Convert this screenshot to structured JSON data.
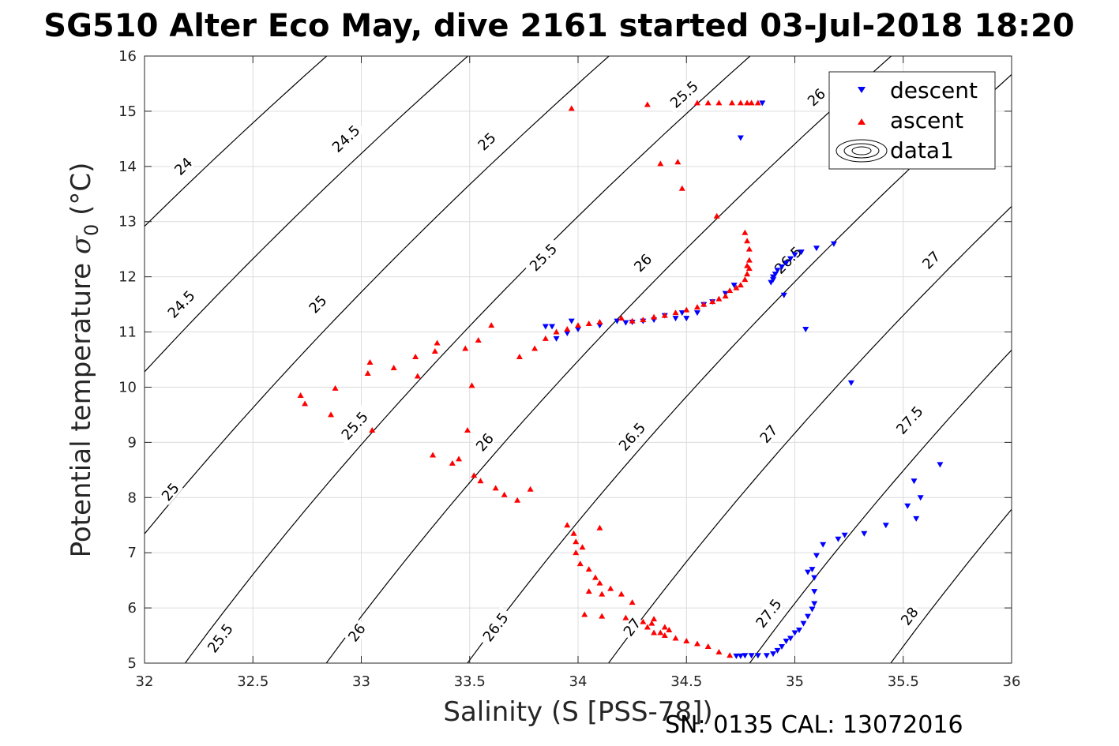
{
  "chart_data": {
    "type": "scatter",
    "title": "SG510 Alter Eco May, dive 2161 started 03-Jul-2018 18:20",
    "xlabel": "Salinity (S [PSS-78])",
    "ylabel_main": "Potential temperature ",
    "ylabel_sigma": "σ",
    "ylabel_sub": "0",
    "ylabel_unit": " (°C)",
    "footer": "SN: 0135  CAL: 13072016",
    "xlim": [
      32,
      36
    ],
    "ylim": [
      5,
      16
    ],
    "xticks": [
      "32",
      "32.5",
      "33",
      "33.5",
      "34",
      "34.5",
      "35",
      "35.5",
      "36"
    ],
    "yticks": [
      "5",
      "6",
      "7",
      "8",
      "9",
      "10",
      "11",
      "12",
      "13",
      "14",
      "15",
      "16"
    ],
    "grid": true,
    "legend": {
      "placement": "top-right",
      "entries": [
        "descent",
        "ascent",
        "data1"
      ]
    },
    "colors": {
      "descent": "#0000ff",
      "ascent": "#ff0000",
      "contour": "#000000"
    },
    "contours": {
      "levels": [
        24,
        24.5,
        25,
        25.5,
        26,
        26.5,
        27,
        27.5,
        28
      ],
      "labels": [
        {
          "text": "24",
          "s": 32.18,
          "t": 14.0
        },
        {
          "text": "24.5",
          "s": 32.17,
          "t": 11.5
        },
        {
          "text": "24.5",
          "s": 32.93,
          "t": 14.5
        },
        {
          "text": "25",
          "s": 32.12,
          "t": 8.1
        },
        {
          "text": "25",
          "s": 32.8,
          "t": 11.5
        },
        {
          "text": "25",
          "s": 33.58,
          "t": 14.45
        },
        {
          "text": "25.5",
          "s": 32.35,
          "t": 5.45
        },
        {
          "text": "25.5",
          "s": 32.97,
          "t": 9.3
        },
        {
          "text": "25.5",
          "s": 33.84,
          "t": 12.35
        },
        {
          "text": "25.5",
          "s": 34.49,
          "t": 15.3
        },
        {
          "text": "26",
          "s": 32.98,
          "t": 5.55
        },
        {
          "text": "26",
          "s": 33.57,
          "t": 9.0
        },
        {
          "text": "26",
          "s": 34.3,
          "t": 12.25
        },
        {
          "text": "26",
          "s": 35.1,
          "t": 15.25
        },
        {
          "text": "26.5",
          "s": 33.62,
          "t": 5.65
        },
        {
          "text": "26.5",
          "s": 34.25,
          "t": 9.1
        },
        {
          "text": "26.5",
          "s": 34.97,
          "t": 12.3
        },
        {
          "text": "27",
          "s": 34.25,
          "t": 5.65
        },
        {
          "text": "27",
          "s": 34.88,
          "t": 9.15
        },
        {
          "text": "27",
          "s": 35.63,
          "t": 12.3
        },
        {
          "text": "27.5",
          "s": 34.88,
          "t": 5.9
        },
        {
          "text": "27.5",
          "s": 35.53,
          "t": 9.4
        },
        {
          "text": "28",
          "s": 35.53,
          "t": 5.85
        }
      ]
    },
    "series": [
      {
        "name": "descent",
        "marker": "triangle-down",
        "x": [
          34.85,
          34.75,
          35.18,
          35.1,
          35.03,
          35.0,
          34.98,
          34.96,
          34.94,
          34.92,
          34.91,
          34.9,
          34.9,
          34.89,
          34.95,
          34.72,
          34.68,
          34.62,
          34.58,
          34.55,
          34.5,
          34.48,
          34.45,
          34.4,
          34.35,
          34.3,
          34.25,
          34.22,
          34.18,
          34.1,
          34.0,
          33.95,
          33.9,
          33.88,
          33.85,
          33.97,
          35.05,
          35.26,
          35.67,
          35.55,
          35.58,
          35.52,
          35.56,
          35.42,
          35.32,
          35.23,
          35.2,
          35.13,
          35.1,
          35.08,
          35.06,
          35.09,
          35.09,
          35.09,
          35.08,
          35.06,
          35.04,
          35.02,
          35.0,
          34.98,
          34.96,
          34.94,
          34.92,
          34.9,
          34.87,
          34.83,
          34.8,
          34.77,
          34.75,
          34.73
        ],
        "y": [
          15.15,
          14.52,
          12.6,
          12.52,
          12.45,
          12.4,
          12.33,
          12.25,
          12.18,
          12.12,
          12.05,
          12.0,
          11.95,
          11.9,
          11.67,
          11.85,
          11.7,
          11.55,
          11.5,
          11.35,
          11.25,
          11.35,
          11.25,
          11.3,
          11.22,
          11.2,
          11.18,
          11.17,
          11.2,
          11.12,
          11.05,
          10.98,
          10.88,
          11.1,
          11.1,
          11.2,
          11.05,
          10.08,
          8.6,
          8.3,
          8.0,
          7.85,
          7.62,
          7.5,
          7.35,
          7.32,
          7.25,
          7.15,
          6.95,
          6.7,
          6.65,
          6.55,
          6.3,
          6.08,
          5.98,
          5.85,
          5.72,
          5.6,
          5.55,
          5.45,
          5.4,
          5.3,
          5.23,
          5.17,
          5.14,
          5.14,
          5.14,
          5.14,
          5.13,
          5.13
        ]
      },
      {
        "name": "ascent",
        "marker": "triangle-up",
        "x": [
          34.83,
          34.8,
          34.78,
          34.75,
          34.71,
          34.65,
          34.6,
          34.55,
          34.32,
          33.97,
          34.38,
          34.46,
          34.48,
          34.64,
          34.77,
          34.78,
          34.79,
          34.79,
          34.78,
          34.79,
          34.78,
          34.77,
          34.75,
          34.73,
          34.7,
          34.68,
          34.65,
          34.62,
          34.58,
          34.55,
          34.5,
          34.45,
          34.4,
          34.35,
          34.3,
          34.25,
          34.2,
          34.1,
          34.05,
          34.0,
          33.95,
          33.9,
          33.85,
          33.8,
          33.73,
          33.6,
          33.54,
          33.48,
          33.35,
          33.25,
          33.15,
          33.04,
          33.03,
          33.26,
          33.34,
          33.51,
          33.49,
          32.72,
          32.74,
          32.88,
          32.86,
          33.05,
          33.33,
          33.42,
          33.45,
          33.52,
          33.55,
          33.62,
          33.66,
          33.72,
          33.78,
          33.95,
          33.98,
          33.99,
          34.02,
          34.1,
          33.99,
          34.01,
          34.05,
          34.08,
          34.1,
          34.05,
          34.11,
          34.15,
          34.2,
          34.25,
          34.03,
          34.11,
          34.22,
          34.3,
          34.34,
          34.4,
          34.42,
          34.38,
          34.35,
          34.32,
          34.35,
          34.4,
          34.45,
          34.5,
          34.55,
          34.6,
          34.65,
          34.7
        ],
        "y": [
          15.15,
          15.15,
          15.15,
          15.15,
          15.15,
          15.15,
          15.15,
          15.15,
          15.12,
          15.05,
          14.05,
          14.08,
          13.6,
          13.1,
          12.8,
          12.65,
          12.5,
          12.3,
          12.2,
          12.15,
          12.05,
          11.95,
          11.85,
          11.8,
          11.75,
          11.65,
          11.6,
          11.55,
          11.5,
          11.45,
          11.4,
          11.35,
          11.3,
          11.27,
          11.22,
          11.2,
          11.25,
          11.18,
          11.15,
          11.12,
          11.05,
          11.0,
          10.88,
          10.7,
          10.55,
          11.12,
          10.85,
          10.7,
          10.8,
          10.55,
          10.35,
          10.45,
          10.25,
          10.2,
          10.65,
          10.03,
          9.22,
          9.85,
          9.7,
          9.98,
          9.5,
          9.22,
          8.77,
          8.62,
          8.7,
          8.4,
          8.3,
          8.17,
          8.05,
          7.95,
          8.15,
          7.5,
          7.35,
          7.2,
          7.1,
          7.45,
          7.0,
          6.8,
          6.7,
          6.55,
          6.45,
          6.3,
          6.25,
          6.35,
          6.25,
          6.1,
          5.88,
          5.85,
          5.82,
          5.75,
          5.72,
          5.65,
          5.6,
          5.55,
          5.8,
          5.65,
          5.55,
          5.5,
          5.45,
          5.4,
          5.35,
          5.3,
          5.2,
          5.14
        ]
      }
    ]
  }
}
